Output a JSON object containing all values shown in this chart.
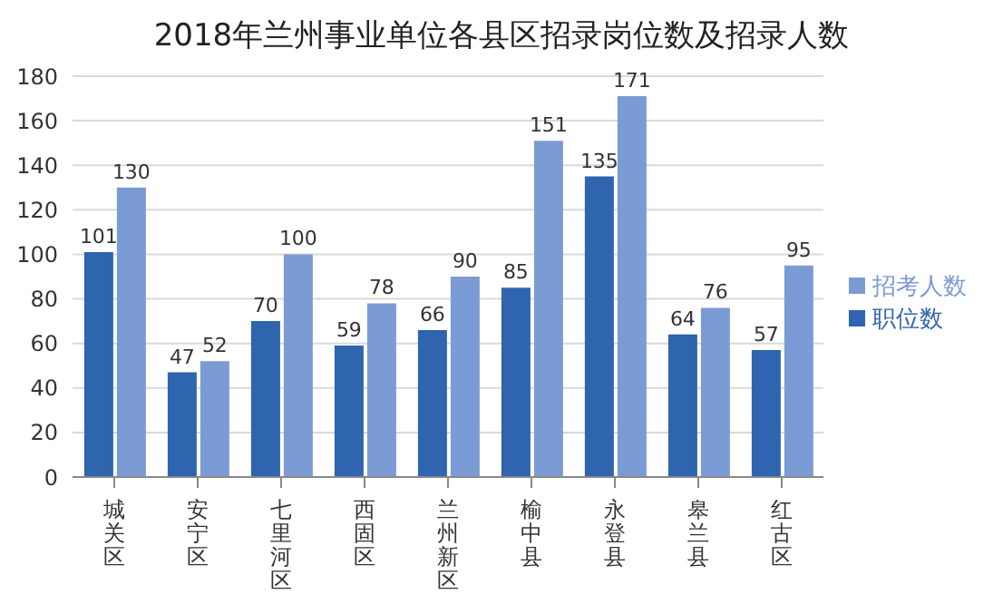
{
  "chart_data": {
    "type": "bar",
    "title": "2018年兰州事业单位各县区招录岗位数及招录人数",
    "categories": [
      "城关区",
      "安宁区",
      "七里河区",
      "西固区",
      "兰州新区",
      "榆中县",
      "永登县",
      "皋兰县",
      "红古区"
    ],
    "series": [
      {
        "name": "职位数",
        "color": "#2f64ae",
        "values": [
          101,
          47,
          70,
          59,
          66,
          85,
          135,
          64,
          57
        ]
      },
      {
        "name": "招考人数",
        "color": "#7b9bd4",
        "values": [
          130,
          52,
          100,
          78,
          90,
          151,
          171,
          76,
          95
        ]
      }
    ],
    "ylim": [
      0,
      180
    ],
    "yticks": [
      0,
      20,
      40,
      60,
      80,
      100,
      120,
      140,
      160,
      180
    ],
    "grid": "y",
    "legend": "right",
    "data_labels": true
  }
}
